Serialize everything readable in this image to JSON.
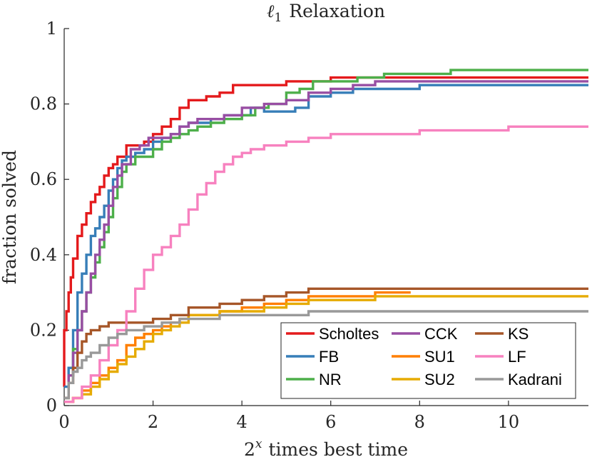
{
  "chart_data": {
    "type": "line",
    "title_prefix": "ℓ",
    "title_subscript": "1",
    "title_suffix": "Relaxation",
    "xlabel_base": "2",
    "xlabel_exp": "x",
    "xlabel_rest": "times best time",
    "ylabel": "fraction solved",
    "xlim": [
      0,
      11.8
    ],
    "ylim": [
      0,
      1
    ],
    "xticks": [
      0,
      2,
      4,
      6,
      8,
      10
    ],
    "xtick_labels": [
      "0",
      "2",
      "4",
      "6",
      "8",
      "10"
    ],
    "yticks": [
      0,
      0.2,
      0.4,
      0.6,
      0.8,
      1
    ],
    "ytick_labels": [
      "0",
      "0.2",
      "0.4",
      "0.6",
      "0.8",
      "1"
    ],
    "grid": false,
    "legend_position": "bottom-right",
    "series": [
      {
        "name": "Scholtes",
        "color": "#E41A1C",
        "points": [
          [
            0,
            0.05
          ],
          [
            0,
            0.2
          ],
          [
            0.05,
            0.25
          ],
          [
            0.1,
            0.3
          ],
          [
            0.15,
            0.34
          ],
          [
            0.2,
            0.39
          ],
          [
            0.3,
            0.45
          ],
          [
            0.4,
            0.48
          ],
          [
            0.5,
            0.51
          ],
          [
            0.6,
            0.54
          ],
          [
            0.7,
            0.56
          ],
          [
            0.8,
            0.58
          ],
          [
            0.9,
            0.61
          ],
          [
            1.0,
            0.63
          ],
          [
            1.1,
            0.64
          ],
          [
            1.2,
            0.66
          ],
          [
            1.4,
            0.69
          ],
          [
            1.6,
            0.69
          ],
          [
            1.8,
            0.7
          ],
          [
            2.0,
            0.72
          ],
          [
            2.2,
            0.74
          ],
          [
            2.4,
            0.76
          ],
          [
            2.6,
            0.79
          ],
          [
            2.8,
            0.81
          ],
          [
            3.0,
            0.81
          ],
          [
            3.2,
            0.82
          ],
          [
            3.5,
            0.83
          ],
          [
            3.8,
            0.85
          ],
          [
            4.2,
            0.85
          ],
          [
            4.6,
            0.85
          ],
          [
            5.0,
            0.86
          ],
          [
            5.5,
            0.86
          ],
          [
            6.0,
            0.87
          ],
          [
            8.0,
            0.87
          ],
          [
            11.8,
            0.87
          ]
        ]
      },
      {
        "name": "FB",
        "color": "#377EB8",
        "points": [
          [
            0,
            0.05
          ],
          [
            0.1,
            0.1
          ],
          [
            0.2,
            0.2
          ],
          [
            0.3,
            0.3
          ],
          [
            0.4,
            0.35
          ],
          [
            0.5,
            0.4
          ],
          [
            0.6,
            0.45
          ],
          [
            0.7,
            0.47
          ],
          [
            0.8,
            0.5
          ],
          [
            0.9,
            0.53
          ],
          [
            1.0,
            0.57
          ],
          [
            1.1,
            0.6
          ],
          [
            1.2,
            0.63
          ],
          [
            1.3,
            0.65
          ],
          [
            1.4,
            0.66
          ],
          [
            1.6,
            0.67
          ],
          [
            1.8,
            0.68
          ],
          [
            2.0,
            0.7
          ],
          [
            2.2,
            0.71
          ],
          [
            2.4,
            0.72
          ],
          [
            2.6,
            0.74
          ],
          [
            2.8,
            0.75
          ],
          [
            3.0,
            0.75
          ],
          [
            3.3,
            0.76
          ],
          [
            3.6,
            0.77
          ],
          [
            4.0,
            0.77
          ],
          [
            4.2,
            0.79
          ],
          [
            4.5,
            0.78
          ],
          [
            5.0,
            0.78
          ],
          [
            5.2,
            0.79
          ],
          [
            5.5,
            0.82
          ],
          [
            6.0,
            0.83
          ],
          [
            6.5,
            0.84
          ],
          [
            7.5,
            0.84
          ],
          [
            8.0,
            0.85
          ],
          [
            11.8,
            0.85
          ]
        ]
      },
      {
        "name": "NR",
        "color": "#4DAF4A",
        "points": [
          [
            0,
            0.02
          ],
          [
            0.1,
            0.08
          ],
          [
            0.2,
            0.15
          ],
          [
            0.3,
            0.2
          ],
          [
            0.4,
            0.25
          ],
          [
            0.5,
            0.3
          ],
          [
            0.6,
            0.34
          ],
          [
            0.7,
            0.38
          ],
          [
            0.8,
            0.42
          ],
          [
            0.9,
            0.46
          ],
          [
            1.0,
            0.5
          ],
          [
            1.1,
            0.55
          ],
          [
            1.2,
            0.58
          ],
          [
            1.3,
            0.62
          ],
          [
            1.4,
            0.64
          ],
          [
            1.6,
            0.66
          ],
          [
            1.8,
            0.66
          ],
          [
            2.0,
            0.68
          ],
          [
            2.2,
            0.7
          ],
          [
            2.4,
            0.71
          ],
          [
            2.6,
            0.72
          ],
          [
            2.8,
            0.73
          ],
          [
            3.0,
            0.74
          ],
          [
            3.3,
            0.75
          ],
          [
            3.6,
            0.76
          ],
          [
            4.0,
            0.77
          ],
          [
            4.3,
            0.79
          ],
          [
            4.6,
            0.8
          ],
          [
            5.0,
            0.83
          ],
          [
            5.3,
            0.84
          ],
          [
            5.6,
            0.86
          ],
          [
            6.0,
            0.86
          ],
          [
            6.6,
            0.87
          ],
          [
            7.2,
            0.88
          ],
          [
            8.0,
            0.88
          ],
          [
            8.7,
            0.89
          ],
          [
            11.8,
            0.89
          ]
        ]
      },
      {
        "name": "CCK",
        "color": "#984EA3",
        "points": [
          [
            0,
            0.02
          ],
          [
            0.1,
            0.08
          ],
          [
            0.2,
            0.14
          ],
          [
            0.3,
            0.2
          ],
          [
            0.4,
            0.25
          ],
          [
            0.5,
            0.3
          ],
          [
            0.6,
            0.35
          ],
          [
            0.7,
            0.4
          ],
          [
            0.8,
            0.44
          ],
          [
            0.9,
            0.48
          ],
          [
            1.0,
            0.53
          ],
          [
            1.1,
            0.58
          ],
          [
            1.2,
            0.61
          ],
          [
            1.3,
            0.64
          ],
          [
            1.5,
            0.68
          ],
          [
            1.7,
            0.69
          ],
          [
            1.9,
            0.71
          ],
          [
            2.2,
            0.71
          ],
          [
            2.4,
            0.72
          ],
          [
            2.6,
            0.74
          ],
          [
            2.8,
            0.75
          ],
          [
            3.0,
            0.76
          ],
          [
            3.3,
            0.76
          ],
          [
            3.6,
            0.77
          ],
          [
            4.0,
            0.79
          ],
          [
            4.5,
            0.8
          ],
          [
            5.0,
            0.81
          ],
          [
            5.5,
            0.83
          ],
          [
            6.0,
            0.84
          ],
          [
            6.5,
            0.85
          ],
          [
            7.0,
            0.86
          ],
          [
            11.8,
            0.86
          ]
        ]
      },
      {
        "name": "SU1",
        "color": "#FF7F00",
        "points": [
          [
            0,
            0.01
          ],
          [
            0.2,
            0.02
          ],
          [
            0.4,
            0.04
          ],
          [
            0.6,
            0.06
          ],
          [
            0.8,
            0.08
          ],
          [
            1.0,
            0.1
          ],
          [
            1.2,
            0.12
          ],
          [
            1.4,
            0.16
          ],
          [
            1.6,
            0.18
          ],
          [
            1.8,
            0.19
          ],
          [
            2.0,
            0.2
          ],
          [
            2.2,
            0.21
          ],
          [
            2.4,
            0.22
          ],
          [
            2.6,
            0.23
          ],
          [
            2.8,
            0.24
          ],
          [
            3.0,
            0.24
          ],
          [
            3.5,
            0.25
          ],
          [
            4.0,
            0.26
          ],
          [
            4.5,
            0.27
          ],
          [
            5.0,
            0.28
          ],
          [
            5.5,
            0.29
          ],
          [
            6.0,
            0.29
          ],
          [
            7.0,
            0.3
          ],
          [
            7.8,
            0.3
          ]
        ]
      },
      {
        "name": "SU2",
        "color": "#E6AB02",
        "points": [
          [
            0,
            0.01
          ],
          [
            0.2,
            0.02
          ],
          [
            0.4,
            0.03
          ],
          [
            0.6,
            0.05
          ],
          [
            0.8,
            0.07
          ],
          [
            1.0,
            0.09
          ],
          [
            1.2,
            0.11
          ],
          [
            1.4,
            0.13
          ],
          [
            1.6,
            0.15
          ],
          [
            1.8,
            0.17
          ],
          [
            2.0,
            0.19
          ],
          [
            2.2,
            0.2
          ],
          [
            2.4,
            0.21
          ],
          [
            2.6,
            0.22
          ],
          [
            2.8,
            0.24
          ],
          [
            3.0,
            0.24
          ],
          [
            3.5,
            0.25
          ],
          [
            4.0,
            0.25
          ],
          [
            4.5,
            0.26
          ],
          [
            5.0,
            0.27
          ],
          [
            5.5,
            0.28
          ],
          [
            6.5,
            0.28
          ],
          [
            7.0,
            0.29
          ],
          [
            11.8,
            0.29
          ]
        ]
      },
      {
        "name": "KS",
        "color": "#A65628",
        "points": [
          [
            0,
            0.02
          ],
          [
            0.1,
            0.06
          ],
          [
            0.2,
            0.1
          ],
          [
            0.3,
            0.14
          ],
          [
            0.4,
            0.17
          ],
          [
            0.5,
            0.19
          ],
          [
            0.6,
            0.2
          ],
          [
            0.8,
            0.21
          ],
          [
            1.0,
            0.22
          ],
          [
            1.2,
            0.22
          ],
          [
            1.4,
            0.22
          ],
          [
            1.6,
            0.22
          ],
          [
            2.0,
            0.23
          ],
          [
            2.4,
            0.24
          ],
          [
            2.8,
            0.26
          ],
          [
            3.0,
            0.26
          ],
          [
            3.5,
            0.27
          ],
          [
            4.0,
            0.28
          ],
          [
            4.5,
            0.29
          ],
          [
            5.0,
            0.3
          ],
          [
            5.5,
            0.31
          ],
          [
            11.8,
            0.31
          ]
        ]
      },
      {
        "name": "LF",
        "color": "#F781BF",
        "points": [
          [
            0,
            0.01
          ],
          [
            0.2,
            0.02
          ],
          [
            0.4,
            0.05
          ],
          [
            0.6,
            0.08
          ],
          [
            0.8,
            0.12
          ],
          [
            1.0,
            0.16
          ],
          [
            1.2,
            0.2
          ],
          [
            1.4,
            0.25
          ],
          [
            1.6,
            0.31
          ],
          [
            1.8,
            0.36
          ],
          [
            2.0,
            0.4
          ],
          [
            2.2,
            0.42
          ],
          [
            2.4,
            0.45
          ],
          [
            2.6,
            0.48
          ],
          [
            2.8,
            0.52
          ],
          [
            3.0,
            0.56
          ],
          [
            3.2,
            0.59
          ],
          [
            3.4,
            0.62
          ],
          [
            3.6,
            0.64
          ],
          [
            3.8,
            0.66
          ],
          [
            4.0,
            0.67
          ],
          [
            4.2,
            0.68
          ],
          [
            4.5,
            0.69
          ],
          [
            5.0,
            0.7
          ],
          [
            5.5,
            0.71
          ],
          [
            6.0,
            0.72
          ],
          [
            7.0,
            0.72
          ],
          [
            8.0,
            0.73
          ],
          [
            9.0,
            0.73
          ],
          [
            10.0,
            0.74
          ],
          [
            11.8,
            0.74
          ]
        ]
      },
      {
        "name": "Kadrani",
        "color": "#999999",
        "points": [
          [
            0,
            0.02
          ],
          [
            0.1,
            0.06
          ],
          [
            0.2,
            0.09
          ],
          [
            0.3,
            0.1
          ],
          [
            0.4,
            0.12
          ],
          [
            0.5,
            0.13
          ],
          [
            0.6,
            0.14
          ],
          [
            0.8,
            0.16
          ],
          [
            1.0,
            0.18
          ],
          [
            1.2,
            0.19
          ],
          [
            1.4,
            0.2
          ],
          [
            1.6,
            0.2
          ],
          [
            1.8,
            0.21
          ],
          [
            2.0,
            0.21
          ],
          [
            2.2,
            0.22
          ],
          [
            2.4,
            0.22
          ],
          [
            2.6,
            0.23
          ],
          [
            3.0,
            0.23
          ],
          [
            3.5,
            0.24
          ],
          [
            4.0,
            0.24
          ],
          [
            5.0,
            0.24
          ],
          [
            5.5,
            0.25
          ],
          [
            11.8,
            0.25
          ]
        ]
      }
    ]
  }
}
